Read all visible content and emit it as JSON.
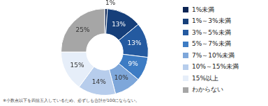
{
  "chart_data": {
    "type": "doughnut",
    "categories": [
      "1%未満",
      "1%～3%未満",
      "3%～5%未満",
      "5%～7%未満",
      "7%～10%未満",
      "10%～15%未満",
      "15%以上",
      "わからない"
    ],
    "values": [
      1,
      13,
      13,
      9,
      10,
      14,
      15,
      25
    ],
    "value_labels": [
      "1%",
      "13%",
      "13%",
      "9%",
      "10%",
      "14%",
      "15%",
      "25%"
    ],
    "colors": [
      "#0b2454",
      "#163f7a",
      "#245aa0",
      "#3d7cc4",
      "#7ea7da",
      "#b7cdec",
      "#e6eef9",
      "#a6a6a6"
    ],
    "data_labels": true,
    "legend": "right",
    "annotations": [
      "※小数点以下を四捨五入しているため、必ずしも合計が100にならない。"
    ]
  }
}
